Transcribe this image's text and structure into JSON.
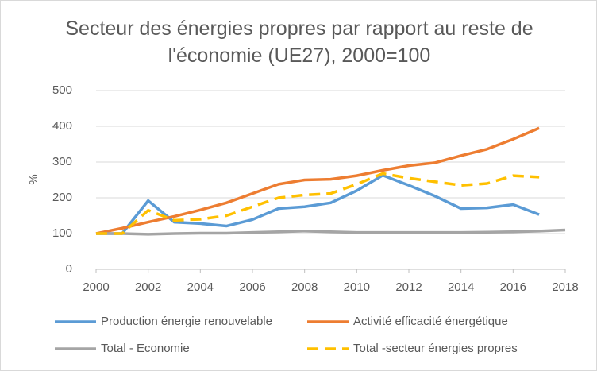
{
  "chart_data": {
    "type": "line",
    "title": "Secteur des énergies propres par rapport au reste de l'économie (UE27), 2000=100",
    "y_label": "%",
    "x": [
      2000,
      2001,
      2002,
      2003,
      2004,
      2005,
      2006,
      2007,
      2008,
      2009,
      2010,
      2011,
      2012,
      2013,
      2014,
      2015,
      2016,
      2017,
      2018
    ],
    "xlim": [
      2000,
      2018
    ],
    "xticks": [
      2000,
      2002,
      2004,
      2006,
      2008,
      2010,
      2012,
      2014,
      2016,
      2018
    ],
    "ylim": [
      0,
      500
    ],
    "yticks": [
      0,
      100,
      200,
      300,
      400,
      500
    ],
    "grid": true,
    "legend": "bottom",
    "series": [
      {
        "name": "Production énergie renouvelable",
        "color": "#5b9bd5",
        "dashed": false,
        "values": [
          100,
          100,
          192,
          132,
          128,
          121,
          139,
          170,
          175,
          186,
          220,
          263,
          235,
          205,
          170,
          172,
          181,
          153,
          null
        ]
      },
      {
        "name": "Activité efficacité énergétique",
        "color": "#ed7d31",
        "dashed": false,
        "values": [
          100,
          115,
          132,
          148,
          166,
          186,
          212,
          238,
          250,
          252,
          262,
          277,
          290,
          298,
          318,
          336,
          364,
          395,
          null
        ]
      },
      {
        "name": "Total - Economie",
        "color": "#a5a5a5",
        "dashed": false,
        "values": [
          100,
          100,
          98,
          100,
          101,
          101,
          103,
          105,
          107,
          105,
          103,
          103,
          103,
          103,
          103,
          104,
          105,
          107,
          110
        ]
      },
      {
        "name": "Total -secteur énergies propres",
        "color": "#ffc000",
        "dashed": true,
        "values": [
          100,
          100,
          165,
          137,
          140,
          150,
          175,
          200,
          208,
          212,
          238,
          268,
          255,
          245,
          235,
          240,
          262,
          258,
          null
        ]
      }
    ]
  }
}
